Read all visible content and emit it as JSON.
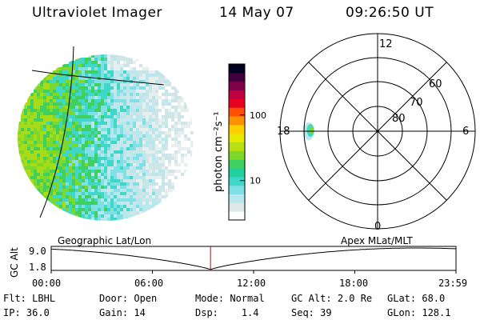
{
  "header": {
    "title": "Ultraviolet Imager",
    "date": "14 May 07",
    "time": "09:26:50 UT"
  },
  "colorbar": {
    "label": "photon cm⁻²s⁻¹",
    "ticks": [
      "100",
      "10"
    ],
    "ticks_values": [
      100,
      10
    ],
    "range": [
      2.5,
      600
    ],
    "colors": [
      "#ffffff",
      "#dce8e8",
      "#b8e8ee",
      "#7fe0e6",
      "#3fd8c8",
      "#20d0a0",
      "#40d060",
      "#7ed82a",
      "#b8e010",
      "#e8e800",
      "#ffd000",
      "#ff9000",
      "#ff5000",
      "#e80020",
      "#c00040",
      "#80004a",
      "#400040",
      "#000020"
    ]
  },
  "polar": {
    "mlt_labels": [
      "12",
      "18",
      "6",
      "0"
    ],
    "lat_labels": [
      "60",
      "70",
      "80"
    ],
    "lat_values": [
      60,
      70,
      80
    ]
  },
  "timeline": {
    "left_label": "Geographic Lat/Lon",
    "right_label": "Apex MLat/MLT",
    "yaxis_title": "GC Alt",
    "y_ticks": [
      "9.0",
      "1.8"
    ],
    "x_ticks": [
      "00:00",
      "06:00",
      "12:00",
      "18:00",
      "23:59"
    ],
    "current_hour": 9.447
  },
  "footer": {
    "flt_label": "Flt:",
    "flt_value": "LBHL",
    "ip_label": "IP:",
    "ip_value": "36.0",
    "door_label": "Door:",
    "door_value": "Open",
    "gain_label": "Gain:",
    "gain_value": "14",
    "mode_label": "Mode:",
    "mode_value": "Normal",
    "dsp_label": "Dsp:",
    "dsp_value": "1.4",
    "gcalt_label": "GC Alt:",
    "gcalt_value": "2.0 Re",
    "seq_label": "Seq:",
    "seq_value": "39",
    "glat_label": "GLat:",
    "glat_value": "68.0",
    "glon_label": "GLon:",
    "glon_value": "128.1"
  },
  "colors": {
    "marker": "#d00000",
    "line": "#000000"
  }
}
